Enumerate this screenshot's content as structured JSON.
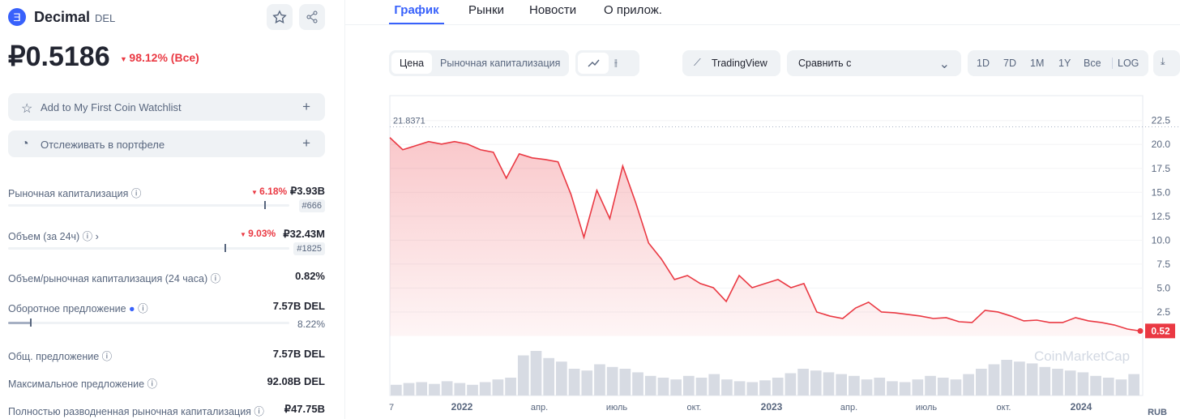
{
  "header": {
    "name": "Decimal",
    "symbol": "DEL",
    "price": "₽0.5186",
    "change": "98.12% (Все)"
  },
  "actions": [
    "Add to My First Coin Watchlist",
    "Отслеживать в портфеле"
  ],
  "stats": [
    {
      "label": "Рыночная капитализация",
      "change": "6.18%",
      "value": "₽3.93B",
      "rank": "#666"
    },
    {
      "label": "Объем (за 24ч)",
      "change": "9.03%",
      "value": "₽32.43M",
      "rank": "#1825"
    },
    {
      "label": "Объем/рыночная капитализация (24 часа)",
      "value": "0.82%"
    },
    {
      "label": "Оборотное предложение",
      "value": "7.57B DEL",
      "sub": "8.22%"
    },
    {
      "label": "Общ. предложение",
      "value": "7.57B DEL"
    },
    {
      "label": "Максимальное предложение",
      "value": "92.08B DEL"
    },
    {
      "label": "Полностью разводненная рыночная капитализация",
      "value": "₽47.75B"
    }
  ],
  "tabs": [
    "График",
    "Рынки",
    "Новости",
    "О прилож."
  ],
  "toolbar": {
    "modes": [
      "Цена",
      "Рыночная капитализация"
    ],
    "tradingview": "TradingView",
    "compare": "Сравнить с",
    "ranges": [
      "1D",
      "7D",
      "1M",
      "1Y",
      "Все",
      "LOG"
    ]
  },
  "chart_data": {
    "type": "line",
    "color": "#ea3943",
    "grid": true,
    "values": [
      20.72,
      19.45,
      19.87,
      20.3,
      20.04,
      20.3,
      20.04,
      19.45,
      19.19,
      16.48,
      19.02,
      18.6,
      18.43,
      18.18,
      14.79,
      10.3,
      15.21,
      12.25,
      17.75,
      13.94,
      9.7,
      8.01,
      5.89,
      6.31,
      5.47,
      5.04,
      3.6,
      6.31,
      5.04,
      5.47,
      5.89,
      5.04,
      5.47,
      2.5,
      2.08,
      1.82,
      2.92,
      3.52,
      2.5,
      2.42,
      2.25,
      2.08,
      1.82,
      1.91,
      1.48,
      1.4,
      2.67,
      2.5,
      2.08,
      1.57,
      1.65,
      1.4,
      1.4,
      1.91,
      1.57,
      1.4,
      1.14,
      0.72,
      0.52
    ],
    "ylim": [
      0,
      25.1
    ],
    "yticks": [
      2.5,
      {
        "value": 5,
        "label": "5.0"
      },
      7.5,
      {
        "value": 10,
        "label": "10.0"
      },
      12.5,
      {
        "value": 15,
        "label": "15.0"
      },
      17.5,
      {
        "value": 20,
        "label": "20.0"
      },
      22.5
    ],
    "max_label": 21.8371,
    "x_tick_labels": [
      "7",
      "2022",
      "апр.",
      "июль",
      "окт.",
      "2023",
      "апр.",
      "июль",
      "окт.",
      "2024"
    ],
    "volumes": [
      12,
      14,
      15,
      13,
      16,
      14,
      12,
      15,
      18,
      20,
      45,
      50,
      42,
      38,
      30,
      28,
      35,
      32,
      30,
      26,
      22,
      20,
      18,
      22,
      20,
      24,
      18,
      16,
      15,
      17,
      20,
      25,
      30,
      28,
      26,
      24,
      22,
      18,
      20,
      16,
      15,
      18,
      22,
      20,
      18,
      24,
      30,
      35,
      40,
      38,
      36,
      32,
      30,
      28,
      26,
      22,
      20,
      18,
      24
    ]
  },
  "currency": "RUB",
  "watermark": "CoinMarketCap"
}
